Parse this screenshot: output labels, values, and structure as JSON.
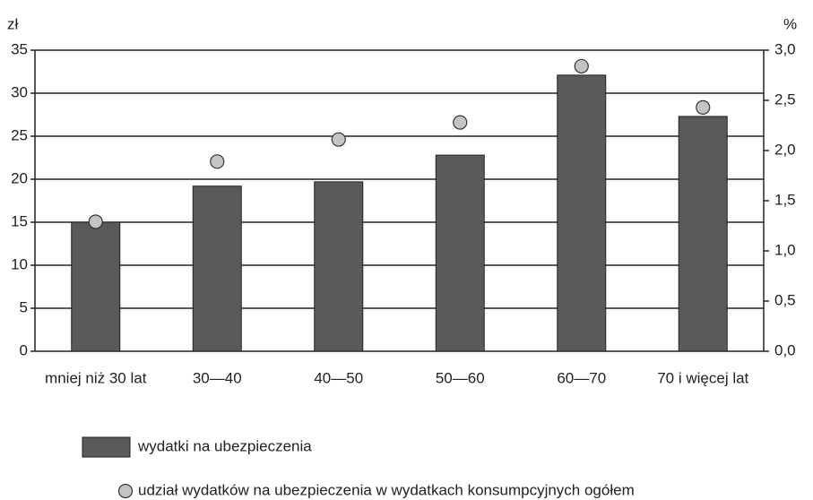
{
  "chart_data": {
    "type": "bar",
    "y_unit": "zł",
    "y2_unit": "%",
    "categories": [
      "mniej niż 30 lat",
      "30—40",
      "40—50",
      "50—60",
      "60—70",
      "70 i więcej lat"
    ],
    "series": [
      {
        "name": "wydatki na ubezpieczenia",
        "type": "bar",
        "color": "#5a5a5a",
        "values": [
          15,
          19.2,
          19.7,
          22.8,
          32.1,
          27.3
        ]
      },
      {
        "name": "udział wydatków na ubezpieczenia w wydatkach konsumpcyjnych ogółem",
        "type": "scatter",
        "axis": "y2",
        "color": "#c4c4c4",
        "values": [
          1.29,
          1.89,
          2.11,
          2.28,
          2.84,
          2.43
        ]
      }
    ],
    "ylim": [
      0,
      35
    ],
    "yticks": [
      0,
      5,
      10,
      15,
      20,
      25,
      30,
      35
    ],
    "y2lim": [
      0,
      3
    ],
    "y2ticks": [
      {
        "value": 0,
        "label": "0,0"
      },
      {
        "value": 0.5,
        "label": "0,5"
      },
      {
        "value": 1,
        "label": "1,0"
      },
      {
        "value": 1.5,
        "label": "1,5"
      },
      {
        "value": 2,
        "label": "2,0"
      },
      {
        "value": 2.5,
        "label": "2,5"
      },
      {
        "value": 3,
        "label": "3,0"
      }
    ],
    "grid": true
  }
}
